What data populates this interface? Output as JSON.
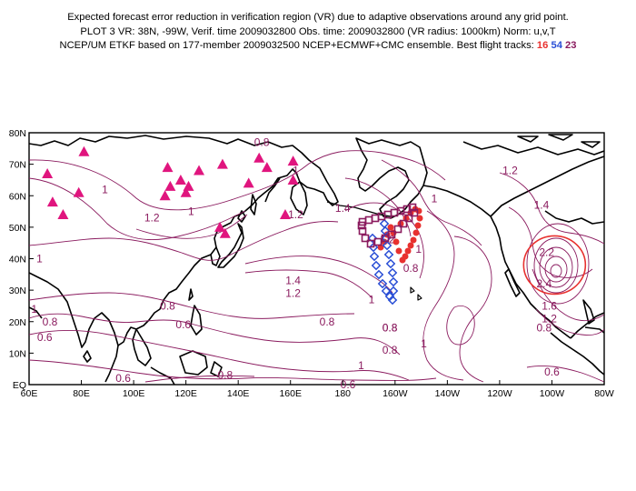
{
  "title": {
    "line1": "Expected forecast error reduction in verification region (VR) due to adaptive observations around any grid point.",
    "line2": "PLOT 3 VR: 38N, -99W, Verif. time 2009032800 Obs. time: 2009032800 (VR radius: 1000km) Norm: u,v,T",
    "line3_prefix": "NCEP/UM ETKF based on 177-member 2009032500 NCEP+ECMWF+CMC ensemble. Best flight tracks:",
    "tracks": [
      {
        "label": "16",
        "color": "#e8312f"
      },
      {
        "label": "54",
        "color": "#2a4fd6"
      },
      {
        "label": "23",
        "color": "#8a1a5e"
      }
    ]
  },
  "map": {
    "lon_range": [
      60,
      280
    ],
    "lat_range": [
      0,
      80
    ],
    "x_ticks": [
      "60E",
      "80E",
      "100E",
      "120E",
      "140E",
      "160E",
      "180",
      "160W",
      "140W",
      "120W",
      "100W",
      "80W"
    ],
    "y_ticks": [
      "EQ",
      "10N",
      "20N",
      "30N",
      "40N",
      "50N",
      "60N",
      "70N",
      "80N"
    ],
    "colors": {
      "contour": "#8a1a5e",
      "land": "#000000",
      "vr_circle": "#e8312f",
      "triangle": "#e0157e"
    },
    "contour_labels": [
      {
        "text": "0.8",
        "lon": 149,
        "lat": 77
      },
      {
        "text": "1",
        "lon": 162,
        "lat": 68
      },
      {
        "text": "1",
        "lon": 89,
        "lat": 62
      },
      {
        "text": "1.2",
        "lon": 107,
        "lat": 53
      },
      {
        "text": "1",
        "lon": 122,
        "lat": 55
      },
      {
        "text": "1.2",
        "lon": 162,
        "lat": 54
      },
      {
        "text": "1.4",
        "lon": 180,
        "lat": 56
      },
      {
        "text": "1",
        "lon": 64,
        "lat": 40
      },
      {
        "text": "1.4",
        "lon": 161,
        "lat": 33
      },
      {
        "text": "1.2",
        "lon": 161,
        "lat": 29
      },
      {
        "text": "0.8",
        "lon": 113,
        "lat": 25
      },
      {
        "text": "0.6",
        "lon": 119,
        "lat": 19
      },
      {
        "text": "1",
        "lon": 62,
        "lat": 24
      },
      {
        "text": "0.8",
        "lon": 68,
        "lat": 20
      },
      {
        "text": "0.6",
        "lon": 66,
        "lat": 15
      },
      {
        "text": "0.8",
        "lon": 174,
        "lat": 20
      },
      {
        "text": "0.8",
        "lon": 206,
        "lat": 37
      },
      {
        "text": "1",
        "lon": 209,
        "lat": 43
      },
      {
        "text": "1",
        "lon": 215,
        "lat": 59
      },
      {
        "text": "1.2",
        "lon": 197,
        "lat": 46
      },
      {
        "text": "1",
        "lon": 191,
        "lat": 27
      },
      {
        "text": "0.8",
        "lon": 198,
        "lat": 18
      },
      {
        "text": "0.8",
        "lon": 198,
        "lat": 11
      },
      {
        "text": "1",
        "lon": 211,
        "lat": 13
      },
      {
        "text": "1",
        "lon": 187,
        "lat": 6
      },
      {
        "text": "0.6",
        "lon": 96,
        "lat": 2
      },
      {
        "text": "0.8",
        "lon": 135,
        "lat": 3
      },
      {
        "text": "0.6",
        "lon": 182,
        "lat": 0
      },
      {
        "text": "0.6",
        "lon": 260,
        "lat": 4
      },
      {
        "text": "1.2",
        "lon": 244,
        "lat": 68
      },
      {
        "text": "1.4",
        "lon": 256,
        "lat": 57
      },
      {
        "text": "2.2",
        "lon": 258,
        "lat": 42
      },
      {
        "text": "2.4",
        "lon": 257,
        "lat": 32
      },
      {
        "text": "1.6",
        "lon": 259,
        "lat": 25
      },
      {
        "text": "1.2",
        "lon": 259,
        "lat": 21
      },
      {
        "text": "0.8",
        "lon": 257,
        "lat": 18
      },
      {
        "text": "0.8",
        "lon": 198,
        "lat": 18
      }
    ],
    "triangles": [
      {
        "lon": 67,
        "lat": 67
      },
      {
        "lon": 81,
        "lat": 74
      },
      {
        "lon": 69,
        "lat": 58
      },
      {
        "lon": 79,
        "lat": 61
      },
      {
        "lon": 73,
        "lat": 54
      },
      {
        "lon": 113,
        "lat": 69
      },
      {
        "lon": 114,
        "lat": 63
      },
      {
        "lon": 125,
        "lat": 68
      },
      {
        "lon": 118,
        "lat": 65
      },
      {
        "lon": 121,
        "lat": 63
      },
      {
        "lon": 112,
        "lat": 60
      },
      {
        "lon": 120,
        "lat": 61
      },
      {
        "lon": 134,
        "lat": 70
      },
      {
        "lon": 144,
        "lat": 64
      },
      {
        "lon": 148,
        "lat": 72
      },
      {
        "lon": 161,
        "lat": 71
      },
      {
        "lon": 151,
        "lat": 69
      },
      {
        "lon": 133,
        "lat": 50
      },
      {
        "lon": 135,
        "lat": 48
      },
      {
        "lon": 158,
        "lat": 54
      },
      {
        "lon": 161,
        "lat": 65
      }
    ],
    "vr_circle": {
      "lon": -99,
      "lat": 38
    }
  }
}
